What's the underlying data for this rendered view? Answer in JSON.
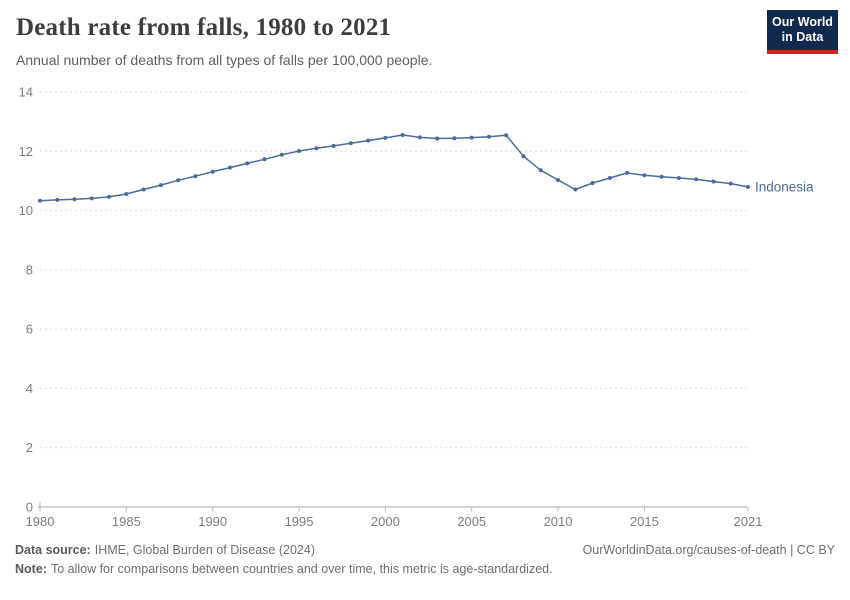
{
  "header": {
    "title": "Death rate from falls, 1980 to 2021",
    "subtitle": "Annual number of deaths from all types of falls per 100,000 people."
  },
  "logo": {
    "line1": "Our World",
    "line2": "in Data",
    "bg_color": "#12294e",
    "accent_color": "#d0271d"
  },
  "chart_data": {
    "type": "line",
    "title": "Death rate from falls, 1980 to 2021",
    "xlabel": "",
    "ylabel": "",
    "x": [
      1980,
      1981,
      1982,
      1983,
      1984,
      1985,
      1986,
      1987,
      1988,
      1989,
      1990,
      1991,
      1992,
      1993,
      1994,
      1995,
      1996,
      1997,
      1998,
      1999,
      2000,
      2001,
      2002,
      2003,
      2004,
      2005,
      2006,
      2007,
      2008,
      2009,
      2010,
      2011,
      2012,
      2013,
      2014,
      2015,
      2016,
      2017,
      2018,
      2019,
      2020,
      2021
    ],
    "series": [
      {
        "name": "Indonesia",
        "color": "#4C6A9C",
        "values": [
          10.33,
          10.36,
          10.38,
          10.41,
          10.46,
          10.56,
          10.71,
          10.86,
          11.02,
          11.16,
          11.31,
          11.45,
          11.59,
          11.73,
          11.88,
          12.01,
          12.1,
          12.18,
          12.27,
          12.36,
          12.45,
          12.55,
          12.47,
          12.43,
          12.44,
          12.46,
          12.49,
          12.54,
          11.83,
          11.36,
          11.03,
          10.71,
          10.93,
          11.1,
          11.27,
          11.19,
          11.14,
          11.1,
          11.05,
          10.98,
          10.91,
          10.8
        ]
      }
    ],
    "ylim": [
      0,
      14
    ],
    "yticks": [
      0,
      2,
      4,
      6,
      8,
      10,
      12,
      14
    ],
    "xticks": [
      1980,
      1985,
      1990,
      1995,
      2000,
      2005,
      2010,
      2015,
      2021
    ],
    "grid": "horizontal-dashed",
    "legend_position": "end-of-line-label",
    "axis_text_color": "#7d7d7d",
    "grid_color": "#dedede",
    "axis_line_color": "#a8a8a8"
  },
  "footer": {
    "datasource_label": "Data source:",
    "datasource": "IHME, Global Burden of Disease (2024)",
    "link": "OurWorldinData.org/causes-of-death | CC BY",
    "note_label": "Note:",
    "note": "To allow for comparisons between countries and over time, this metric is age-standardized."
  }
}
